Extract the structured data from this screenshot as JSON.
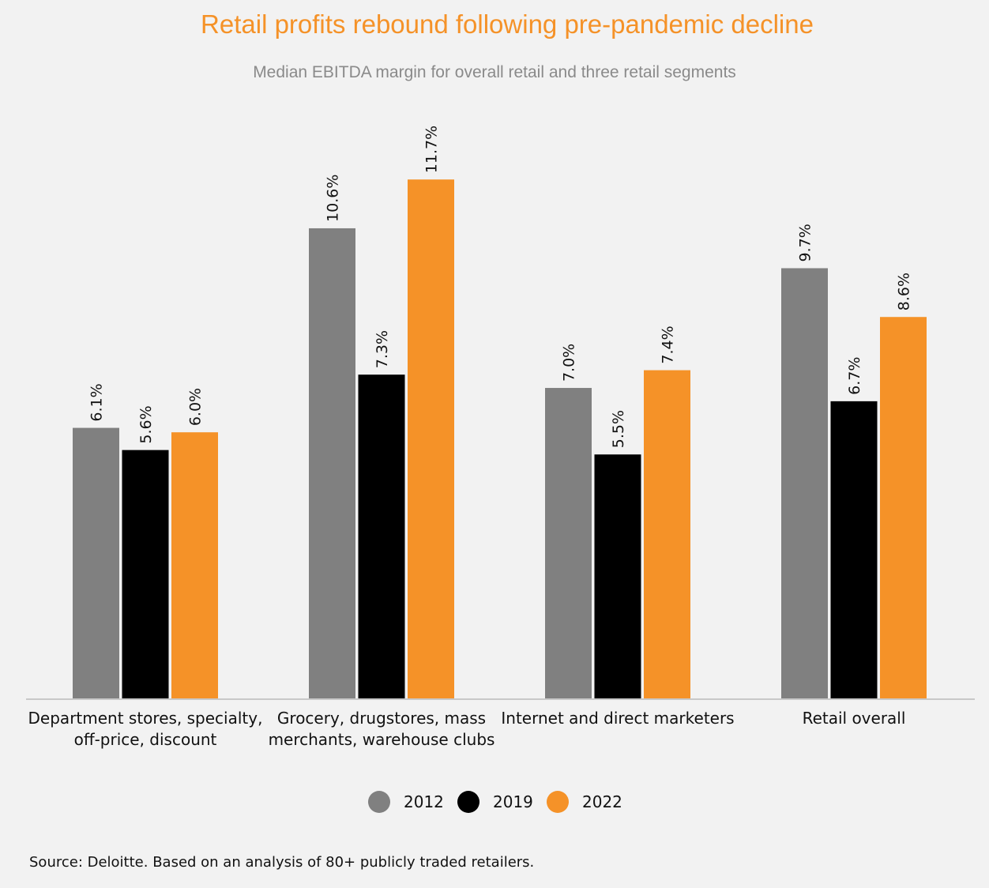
{
  "chart_data": {
    "type": "bar",
    "title": "Retail profits rebound following pre-pandemic decline",
    "subtitle": "Median EBITDA margin for overall retail and three retail segments",
    "categories": [
      [
        "Department stores, specialty,",
        "off-price, discount"
      ],
      [
        "Grocery, drugstores, mass",
        "merchants, warehouse clubs"
      ],
      [
        "Internet and direct marketers"
      ],
      [
        "Retail overall"
      ]
    ],
    "series": [
      {
        "name": "2012",
        "color": "#808080",
        "values": [
          6.1,
          10.6,
          7.0,
          9.7
        ],
        "labels": [
          "6.1%",
          "10.6%",
          "7.0%",
          "9.7%"
        ]
      },
      {
        "name": "2019",
        "color": "#000000",
        "values": [
          5.6,
          7.3,
          5.5,
          6.7
        ],
        "labels": [
          "5.6%",
          "7.3%",
          "5.5%",
          "6.7%"
        ]
      },
      {
        "name": "2022",
        "color": "#f59228",
        "values": [
          6.0,
          11.7,
          7.4,
          8.6
        ],
        "labels": [
          "6.0%",
          "11.7%",
          "7.4%",
          "8.6%"
        ]
      }
    ],
    "ylim": [
      0,
      13.2
    ],
    "grid": false,
    "legend": "bottom-center",
    "xlabel": "",
    "ylabel": ""
  },
  "source": "Source: Deloitte. Based on an analysis of 80+ publicly traded retailers.",
  "colors": {
    "title": "#f59228",
    "subtitle": "#8a8a8a",
    "axis": "#c8c8c8",
    "background": "#f2f2f2"
  }
}
